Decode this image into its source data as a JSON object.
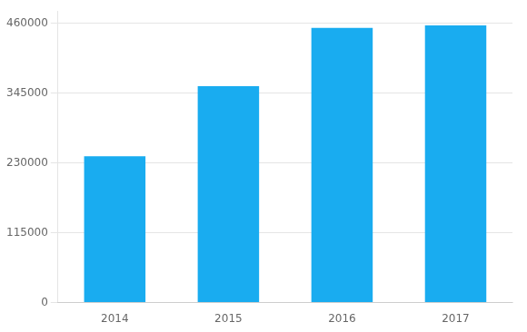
{
  "chart_data": {
    "type": "bar",
    "categories": [
      "2014",
      "2015",
      "2016",
      "2017"
    ],
    "values": [
      241000,
      356000,
      452000,
      456000
    ],
    "color": "#19acf0",
    "ylim": [
      0,
      480000
    ],
    "yticks": [
      0,
      115000,
      230000,
      345000,
      460000
    ],
    "grid": true
  }
}
